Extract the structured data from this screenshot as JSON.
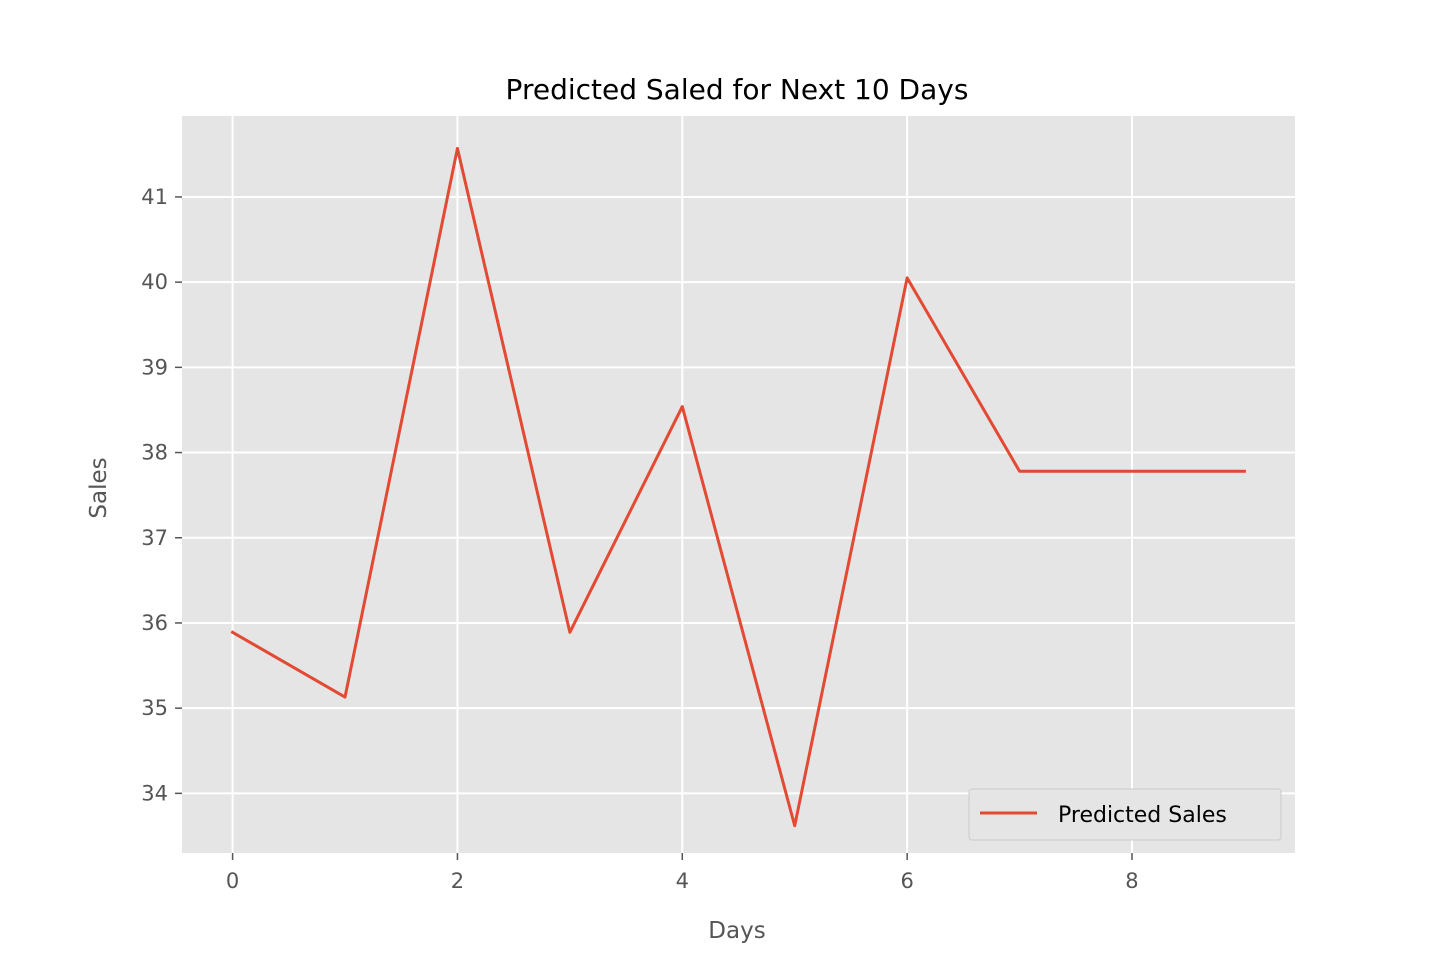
{
  "chart_data": {
    "type": "line",
    "title": "Predicted Saled for Next 10 Days",
    "xlabel": "Days",
    "ylabel": "Sales",
    "xlim": [
      -0.45,
      9.45
    ],
    "ylim": [
      33.3,
      41.95
    ],
    "x_ticks": [
      0,
      2,
      4,
      6,
      8
    ],
    "y_ticks": [
      34,
      35,
      36,
      37,
      38,
      39,
      40,
      41
    ],
    "grid": true,
    "legend_position": "lower right",
    "series": [
      {
        "name": "Predicted Sales",
        "color": "#E24A33",
        "x": [
          0,
          1,
          2,
          3,
          4,
          5,
          6,
          7,
          8,
          9
        ],
        "y": [
          35.89,
          35.13,
          41.57,
          35.89,
          38.54,
          33.62,
          40.05,
          37.78,
          37.78,
          37.78
        ]
      }
    ]
  },
  "style": {
    "plot_background": "#E5E5E5",
    "grid_color": "#FFFFFF",
    "tick_label_color": "#555555",
    "title_color": "#000000",
    "legend_background": "#E5E5E5",
    "legend_border": "#CCCCCC"
  }
}
